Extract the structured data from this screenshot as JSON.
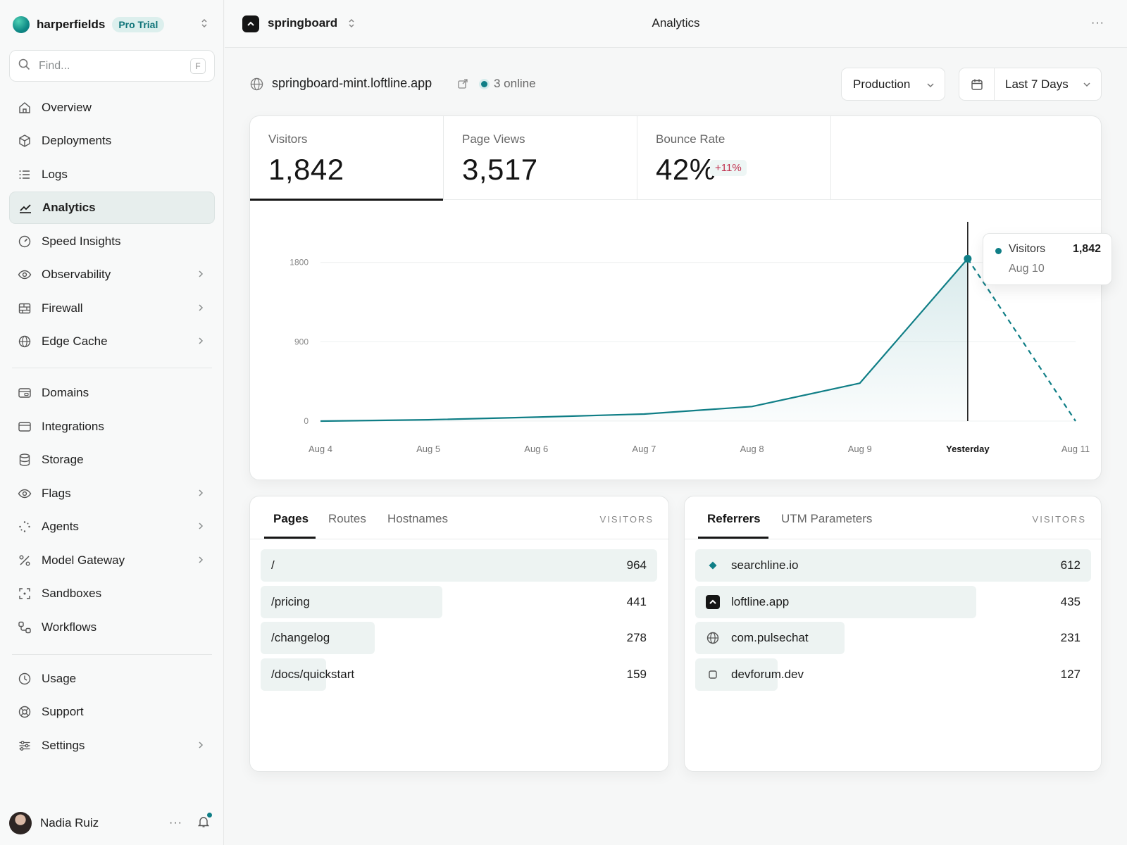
{
  "team": {
    "name": "harperfields",
    "plan_badge": "Pro Trial"
  },
  "search": {
    "placeholder": "Find...",
    "shortcut": "F"
  },
  "sidebar": {
    "items": [
      {
        "label": "Overview",
        "icon": "home-icon"
      },
      {
        "label": "Deployments",
        "icon": "cube-icon"
      },
      {
        "label": "Logs",
        "icon": "list-icon"
      },
      {
        "label": "Analytics",
        "icon": "chart-line-icon",
        "active": true
      },
      {
        "label": "Speed Insights",
        "icon": "gauge-icon"
      },
      {
        "label": "Observability",
        "icon": "eye-icon",
        "has_submenu": true
      },
      {
        "label": "Firewall",
        "icon": "firewall-icon",
        "has_submenu": true
      },
      {
        "label": "Edge Cache",
        "icon": "globe-icon",
        "has_submenu": true
      },
      {
        "label": "Domains",
        "icon": "browser-icon"
      },
      {
        "label": "Integrations",
        "icon": "window-icon"
      },
      {
        "label": "Storage",
        "icon": "database-icon"
      },
      {
        "label": "Flags",
        "icon": "eye-icon",
        "has_submenu": true
      },
      {
        "label": "Agents",
        "icon": "sparkle-dots-icon",
        "has_submenu": true
      },
      {
        "label": "Model Gateway",
        "icon": "percent-icon",
        "has_submenu": true
      },
      {
        "label": "Sandboxes",
        "icon": "focus-frame-icon"
      },
      {
        "label": "Workflows",
        "icon": "workflow-icon"
      },
      {
        "label": "Usage",
        "icon": "clock-icon"
      },
      {
        "label": "Support",
        "icon": "lifebuoy-icon"
      },
      {
        "label": "Settings",
        "icon": "sliders-icon",
        "has_submenu": true
      }
    ]
  },
  "user": {
    "name": "Nadia Ruiz",
    "more": "···"
  },
  "topbar": {
    "project": "springboard",
    "title": "Analytics",
    "more": "···"
  },
  "header": {
    "domain": "springboard-mint.loftline.app",
    "online": "3 online",
    "environment": "Production",
    "range": "Last 7 Days"
  },
  "stats": [
    {
      "label": "Visitors",
      "value": "1,842",
      "active": true
    },
    {
      "label": "Page Views",
      "value": "3,517"
    },
    {
      "label": "Bounce Rate",
      "value": "42%",
      "delta": "+11%"
    }
  ],
  "colors": {
    "accent": "#0f7e86",
    "delta_text": "#c0314f",
    "bar": "#edf3f2"
  },
  "chart_data": {
    "type": "line",
    "title": "",
    "xlabel": "",
    "ylabel": "",
    "categories": [
      "Aug 4",
      "Aug 5",
      "Aug 6",
      "Aug 7",
      "Aug 8",
      "Aug 9",
      "Yesterday",
      "Aug 11"
    ],
    "highlight_category": "Yesterday",
    "series": [
      {
        "name": "Visitors",
        "values": [
          0,
          15,
          45,
          80,
          165,
          430,
          1842,
          0
        ],
        "dashed_from_index": 6
      }
    ],
    "yticks": [
      "0",
      "900",
      "1800"
    ],
    "ylim": [
      0,
      2300
    ],
    "grid": true,
    "tooltip": {
      "series": "Visitors",
      "value": "1,842",
      "date": "Aug 10"
    }
  },
  "pages": {
    "tabs": [
      "Pages",
      "Routes",
      "Hostnames"
    ],
    "column": "VISITORS",
    "rows": [
      {
        "label": "/",
        "value": "964",
        "count": 964
      },
      {
        "label": "/pricing",
        "value": "441",
        "count": 441
      },
      {
        "label": "/changelog",
        "value": "278",
        "count": 278
      },
      {
        "label": "/docs/quickstart",
        "value": "159",
        "count": 159
      }
    ]
  },
  "referrers": {
    "tabs": [
      "Referrers",
      "UTM Parameters"
    ],
    "column": "VISITORS",
    "rows": [
      {
        "label": "searchline.io",
        "value": "612",
        "count": 612,
        "icon": "diamond-icon"
      },
      {
        "label": "loftline.app",
        "value": "435",
        "count": 435,
        "icon": "loftline-logo-icon"
      },
      {
        "label": "com.pulsechat",
        "value": "231",
        "count": 231,
        "icon": "globe-icon"
      },
      {
        "label": "devforum.dev",
        "value": "127",
        "count": 127,
        "icon": "square-icon"
      }
    ]
  }
}
